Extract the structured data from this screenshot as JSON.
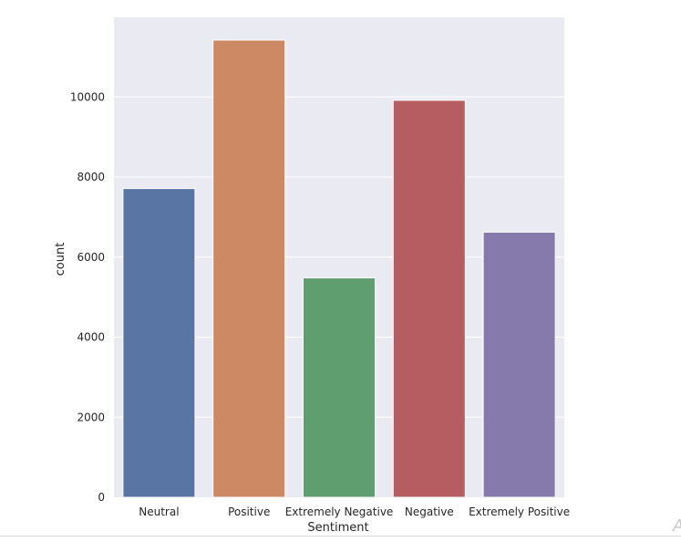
{
  "chart_data": {
    "type": "bar",
    "categories": [
      "Neutral",
      "Positive",
      "Extremely Negative",
      "Negative",
      "Extremely Positive"
    ],
    "values": [
      7713,
      11422,
      5481,
      9917,
      6624
    ],
    "colors": [
      "#5975a4",
      "#cc8963",
      "#5f9e6e",
      "#b55d60",
      "#857aab"
    ],
    "xlabel": "Sentiment",
    "ylabel": "count",
    "ylim": [
      0,
      11990
    ],
    "yticks": [
      0,
      2000,
      4000,
      6000,
      8000,
      10000
    ],
    "grid": true,
    "background": "#eaeaf2",
    "grid_color": "#ffffff"
  },
  "page": {
    "corner_glyph": "A"
  }
}
